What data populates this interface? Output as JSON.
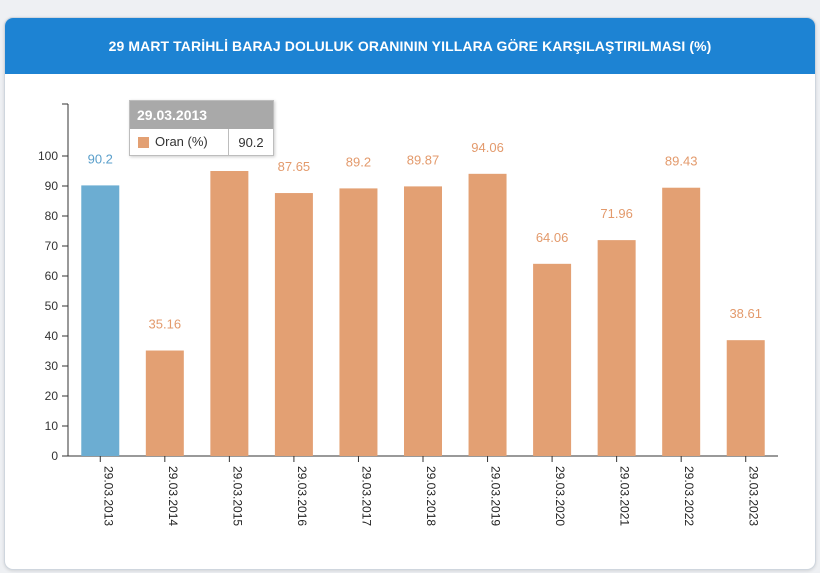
{
  "header": {
    "title": "29 MART TARİHLİ BARAJ DOLULUK ORANININ YILLARA GÖRE KARŞILAŞTIRILMASI (%)"
  },
  "colors": {
    "header": "#1d83d3",
    "bar": "#e3a073",
    "bar_highlight": "#6cadd2",
    "label": "#e39a6c",
    "label_highlight": "#5a9fcb"
  },
  "chart_data": {
    "type": "bar",
    "categories": [
      "29.03.2013",
      "29.03.2014",
      "29.03.2015",
      "29.03.2016",
      "29.03.2017",
      "29.03.2018",
      "29.03.2019",
      "29.03.2020",
      "29.03.2021",
      "29.03.2022",
      "29.03.2023"
    ],
    "series": [
      {
        "name": "Oran (%)",
        "values": [
          90.2,
          35.16,
          95,
          87.65,
          89.2,
          89.87,
          94.06,
          64.06,
          71.96,
          89.43,
          38.61
        ]
      }
    ],
    "data_labels": [
      "90.2",
      "35.16",
      "",
      "87.65",
      "89.2",
      "89.87",
      "94.06",
      "64.06",
      "71.96",
      "89.43",
      "38.61"
    ],
    "yticks": [
      0,
      10,
      20,
      30,
      40,
      50,
      60,
      70,
      80,
      90,
      100
    ],
    "ylim": [
      0,
      110
    ],
    "highlighted_index": 0
  },
  "tooltip": {
    "date": "29.03.2013",
    "series": "Oran (%)",
    "value": "90.2"
  }
}
